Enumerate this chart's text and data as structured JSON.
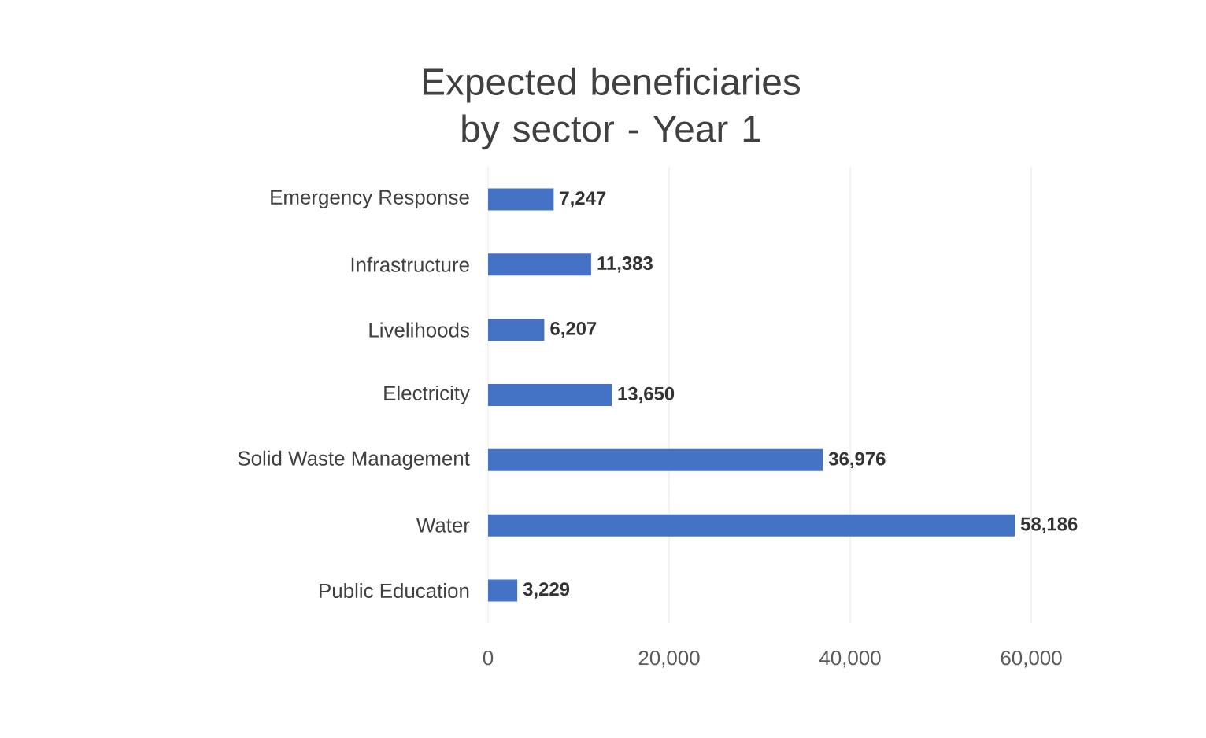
{
  "chart_data": {
    "type": "bar",
    "orientation": "horizontal",
    "title": "Expected beneficiaries by sector - Year 1",
    "categories": [
      "Emergency Response",
      "Infrastructure",
      "Livelihoods",
      "Electricity",
      "Solid Waste Management",
      "Water",
      "Public Education"
    ],
    "values": [
      7247,
      11383,
      6207,
      13650,
      36976,
      58186,
      3229
    ],
    "value_labels": [
      "7,247",
      "11,383",
      "6,207",
      "13,650",
      "36,976",
      "58,186",
      "3,229"
    ],
    "color": "#4472c4",
    "xlim": [
      0,
      60000
    ],
    "xticks": [
      0,
      {
        "value": 20000,
        "label": "20,000"
      },
      {
        "value": 40000,
        "label": "40,000"
      },
      {
        "value": 60000,
        "label": "60,000"
      }
    ],
    "grid": "x"
  }
}
